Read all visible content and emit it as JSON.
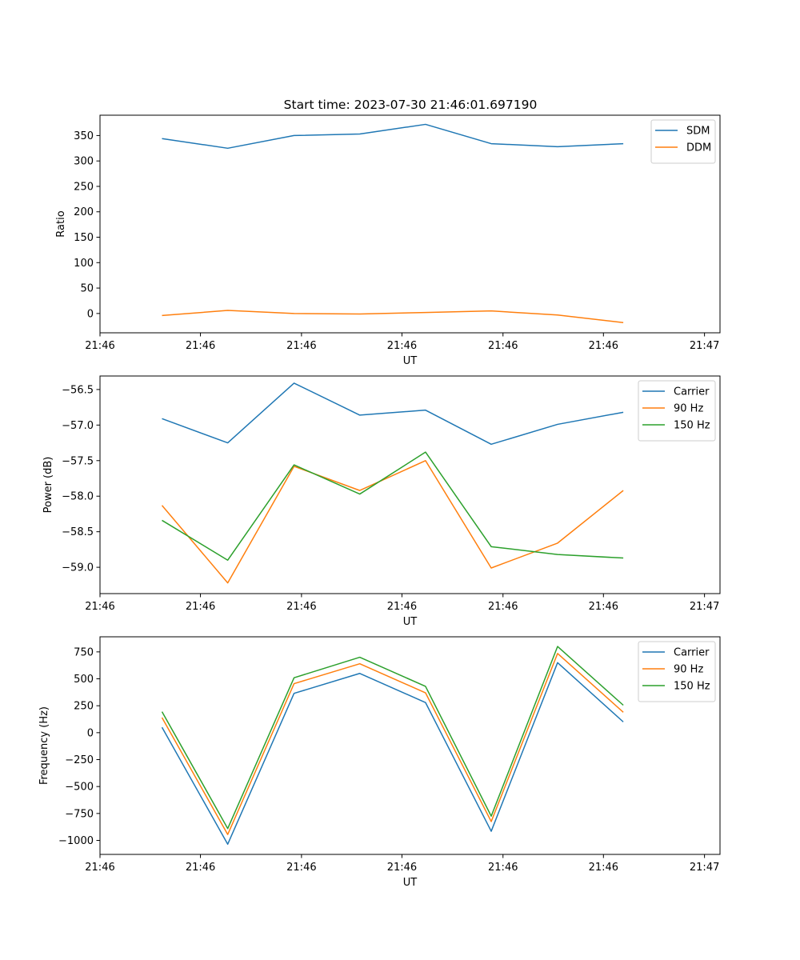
{
  "title": "Start time: 2023-07-30 21:46:01.697190",
  "colors": {
    "blue": "#1f77b4",
    "orange": "#ff7f0e",
    "green": "#2ca02c"
  },
  "chart_data": [
    {
      "type": "line",
      "xlabel": "UT",
      "ylabel": "Ratio",
      "xlim": [
        0,
        1
      ],
      "x": [
        0.1,
        0.206,
        0.313,
        0.419,
        0.525,
        0.631,
        0.738,
        0.844
      ],
      "x_ticks": [
        0,
        0.162,
        0.325,
        0.487,
        0.65,
        0.812,
        0.975
      ],
      "x_tick_labels": [
        "21:46",
        "21:46",
        "21:46",
        "21:46",
        "21:46",
        "21:46",
        "21:47"
      ],
      "ylim": [
        -38,
        390
      ],
      "y_ticks": [
        0,
        50,
        100,
        150,
        200,
        250,
        300,
        350
      ],
      "y_tick_labels": [
        "0",
        "50",
        "100",
        "150",
        "200",
        "250",
        "300",
        "350"
      ],
      "legend_position": "top-right",
      "series": [
        {
          "name": "SDM",
          "color": "blue",
          "values": [
            344,
            325,
            350,
            353,
            372,
            334,
            328,
            334
          ]
        },
        {
          "name": "DDM",
          "color": "orange",
          "values": [
            -4,
            6,
            0,
            -1,
            2,
            5,
            -3,
            -18
          ]
        }
      ]
    },
    {
      "type": "line",
      "xlabel": "UT",
      "ylabel": "Power (dB)",
      "xlim": [
        0,
        1
      ],
      "x": [
        0.1,
        0.206,
        0.313,
        0.419,
        0.525,
        0.631,
        0.738,
        0.844
      ],
      "x_ticks": [
        0,
        0.162,
        0.325,
        0.487,
        0.65,
        0.812,
        0.975
      ],
      "x_tick_labels": [
        "21:46",
        "21:46",
        "21:46",
        "21:46",
        "21:46",
        "21:46",
        "21:47"
      ],
      "ylim": [
        -59.37,
        -56.31
      ],
      "y_ticks": [
        -59.0,
        -58.5,
        -58.0,
        -57.5,
        -57.0,
        -56.5
      ],
      "y_tick_labels": [
        "−59.0",
        "−58.5",
        "−58.0",
        "−57.5",
        "−57.0",
        "−56.5"
      ],
      "legend_position": "top-right",
      "series": [
        {
          "name": "Carrier",
          "color": "blue",
          "values": [
            -56.91,
            -57.25,
            -56.41,
            -56.86,
            -56.79,
            -57.27,
            -56.99,
            -56.82
          ]
        },
        {
          "name": "90 Hz",
          "color": "orange",
          "values": [
            -58.13,
            -59.22,
            -57.58,
            -57.92,
            -57.5,
            -59.01,
            -58.66,
            -57.92
          ]
        },
        {
          "name": "150 Hz",
          "color": "green",
          "values": [
            -58.34,
            -58.9,
            -57.56,
            -57.97,
            -57.38,
            -58.71,
            -58.82,
            -58.87
          ]
        }
      ]
    },
    {
      "type": "line",
      "xlabel": "UT",
      "ylabel": "Frequency (Hz)",
      "xlim": [
        0,
        1
      ],
      "x": [
        0.1,
        0.206,
        0.313,
        0.419,
        0.525,
        0.631,
        0.738,
        0.844
      ],
      "x_ticks": [
        0,
        0.162,
        0.325,
        0.487,
        0.65,
        0.812,
        0.975
      ],
      "x_tick_labels": [
        "21:46",
        "21:46",
        "21:46",
        "21:46",
        "21:46",
        "21:46",
        "21:47"
      ],
      "ylim": [
        -1130,
        890
      ],
      "y_ticks": [
        -1000,
        -750,
        -500,
        -250,
        0,
        250,
        500,
        750
      ],
      "y_tick_labels": [
        "−1000",
        "−750",
        "−500",
        "−250",
        "0",
        "250",
        "500",
        "750"
      ],
      "legend_position": "top-right",
      "series": [
        {
          "name": "Carrier",
          "color": "blue",
          "values": [
            50,
            -1035,
            365,
            550,
            280,
            -915,
            650,
            100
          ]
        },
        {
          "name": "90 Hz",
          "color": "orange",
          "values": [
            140,
            -945,
            455,
            640,
            370,
            -825,
            735,
            190
          ]
        },
        {
          "name": "150 Hz",
          "color": "green",
          "values": [
            195,
            -890,
            510,
            700,
            430,
            -775,
            800,
            255
          ]
        }
      ]
    }
  ]
}
